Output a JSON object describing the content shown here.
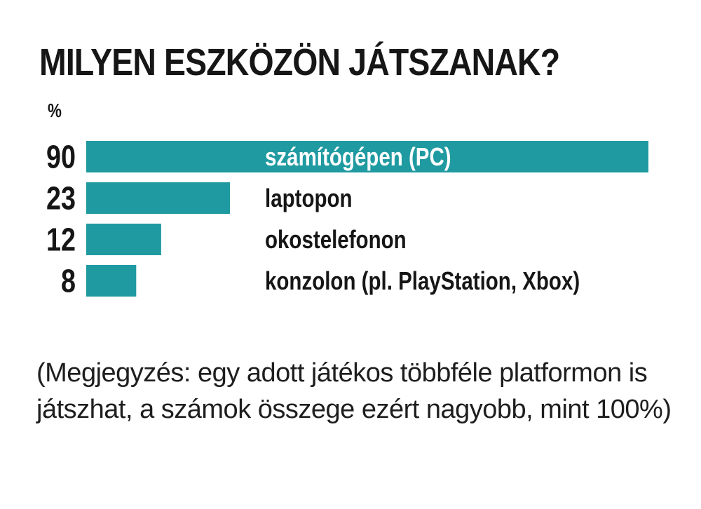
{
  "chart_data": {
    "type": "bar",
    "orientation": "horizontal",
    "title": "MILYEN ESZKÖZÖN JÁTSZANAK?",
    "unit_label": "%",
    "categories": [
      "számítógépen (PC)",
      "laptopon",
      "okostelefonon",
      "konzolon (pl. PlayStation, Xbox)"
    ],
    "values": [
      90,
      23,
      12,
      8
    ],
    "value_labels": [
      "90",
      "23",
      "12",
      "8"
    ],
    "xlim": [
      0,
      90
    ],
    "grid": false,
    "legend": "none",
    "bar_color": "#1f9aa1",
    "inside_label_color": "#ffffff",
    "label_color": "#161616",
    "note": "(Megjegyzés: egy adott játékos többféle platformon is játszhat, a számok összege ezért nagyobb, mint 100%)"
  }
}
